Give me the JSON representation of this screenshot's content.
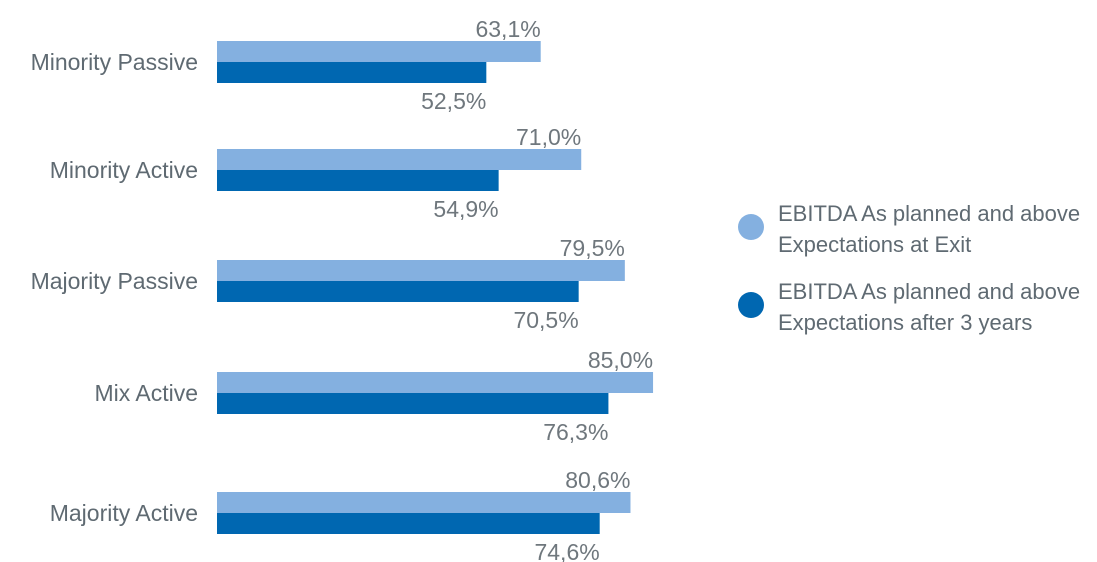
{
  "chart_data": {
    "type": "bar",
    "orientation": "horizontal",
    "categories": [
      "Minority Passive",
      "Minority Active",
      "Majority Passive",
      "Mix Active",
      "Majority Active"
    ],
    "series": [
      {
        "name": "EBITDA As planned and above Expectations at Exit",
        "values": [
          63.1,
          71.0,
          79.5,
          85.0,
          80.6
        ],
        "labels": [
          "63,1%",
          "71,0%",
          "79,5%",
          "85,0%",
          "80,6%"
        ],
        "color": "#84b0e0"
      },
      {
        "name": "EBITDA As planned and above Expectations after 3 years",
        "values": [
          52.5,
          54.9,
          70.5,
          76.3,
          74.6
        ],
        "labels": [
          "52,5%",
          "54,9%",
          "70,5%",
          "76,3%",
          "74,6%"
        ],
        "color": "#0067b1"
      }
    ],
    "xlim": [
      0,
      100
    ],
    "grid": false,
    "legend_position": "right"
  },
  "legend": {
    "items": [
      {
        "line1": "EBITDA As planned and above",
        "line2": "Expectations at Exit",
        "color": "#84b0e0"
      },
      {
        "line1": "EBITDA As planned and above",
        "line2": "Expectations after 3 years",
        "color": "#0067b1"
      }
    ]
  }
}
